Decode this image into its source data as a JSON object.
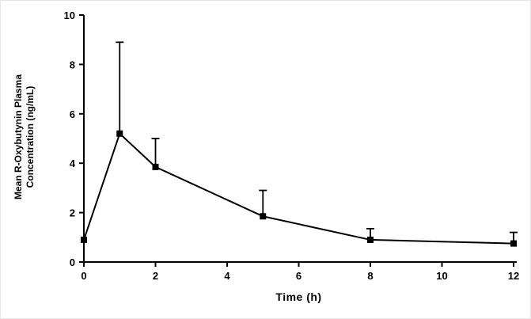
{
  "chart_data": {
    "type": "line",
    "title": "",
    "xlabel": "Time (h)",
    "ylabel_line1": "Mean R-Oxybutynin Plasma",
    "ylabel_line2": "Concentration (ng/mL)",
    "x": [
      0,
      1,
      2,
      5,
      8,
      12
    ],
    "y": [
      0.9,
      5.2,
      3.85,
      1.85,
      0.9,
      0.75
    ],
    "yerr_upper": [
      0,
      3.7,
      1.15,
      1.05,
      0.45,
      0.45
    ],
    "xlim": [
      0,
      12
    ],
    "ylim": [
      0,
      10
    ],
    "xticks": [
      0,
      2,
      4,
      6,
      8,
      10,
      12
    ],
    "yticks": [
      0,
      2,
      4,
      6,
      8,
      10
    ],
    "marker": "square",
    "line_color": "#000000",
    "axis_color": "#000000",
    "legend": "none",
    "grid": "off"
  }
}
